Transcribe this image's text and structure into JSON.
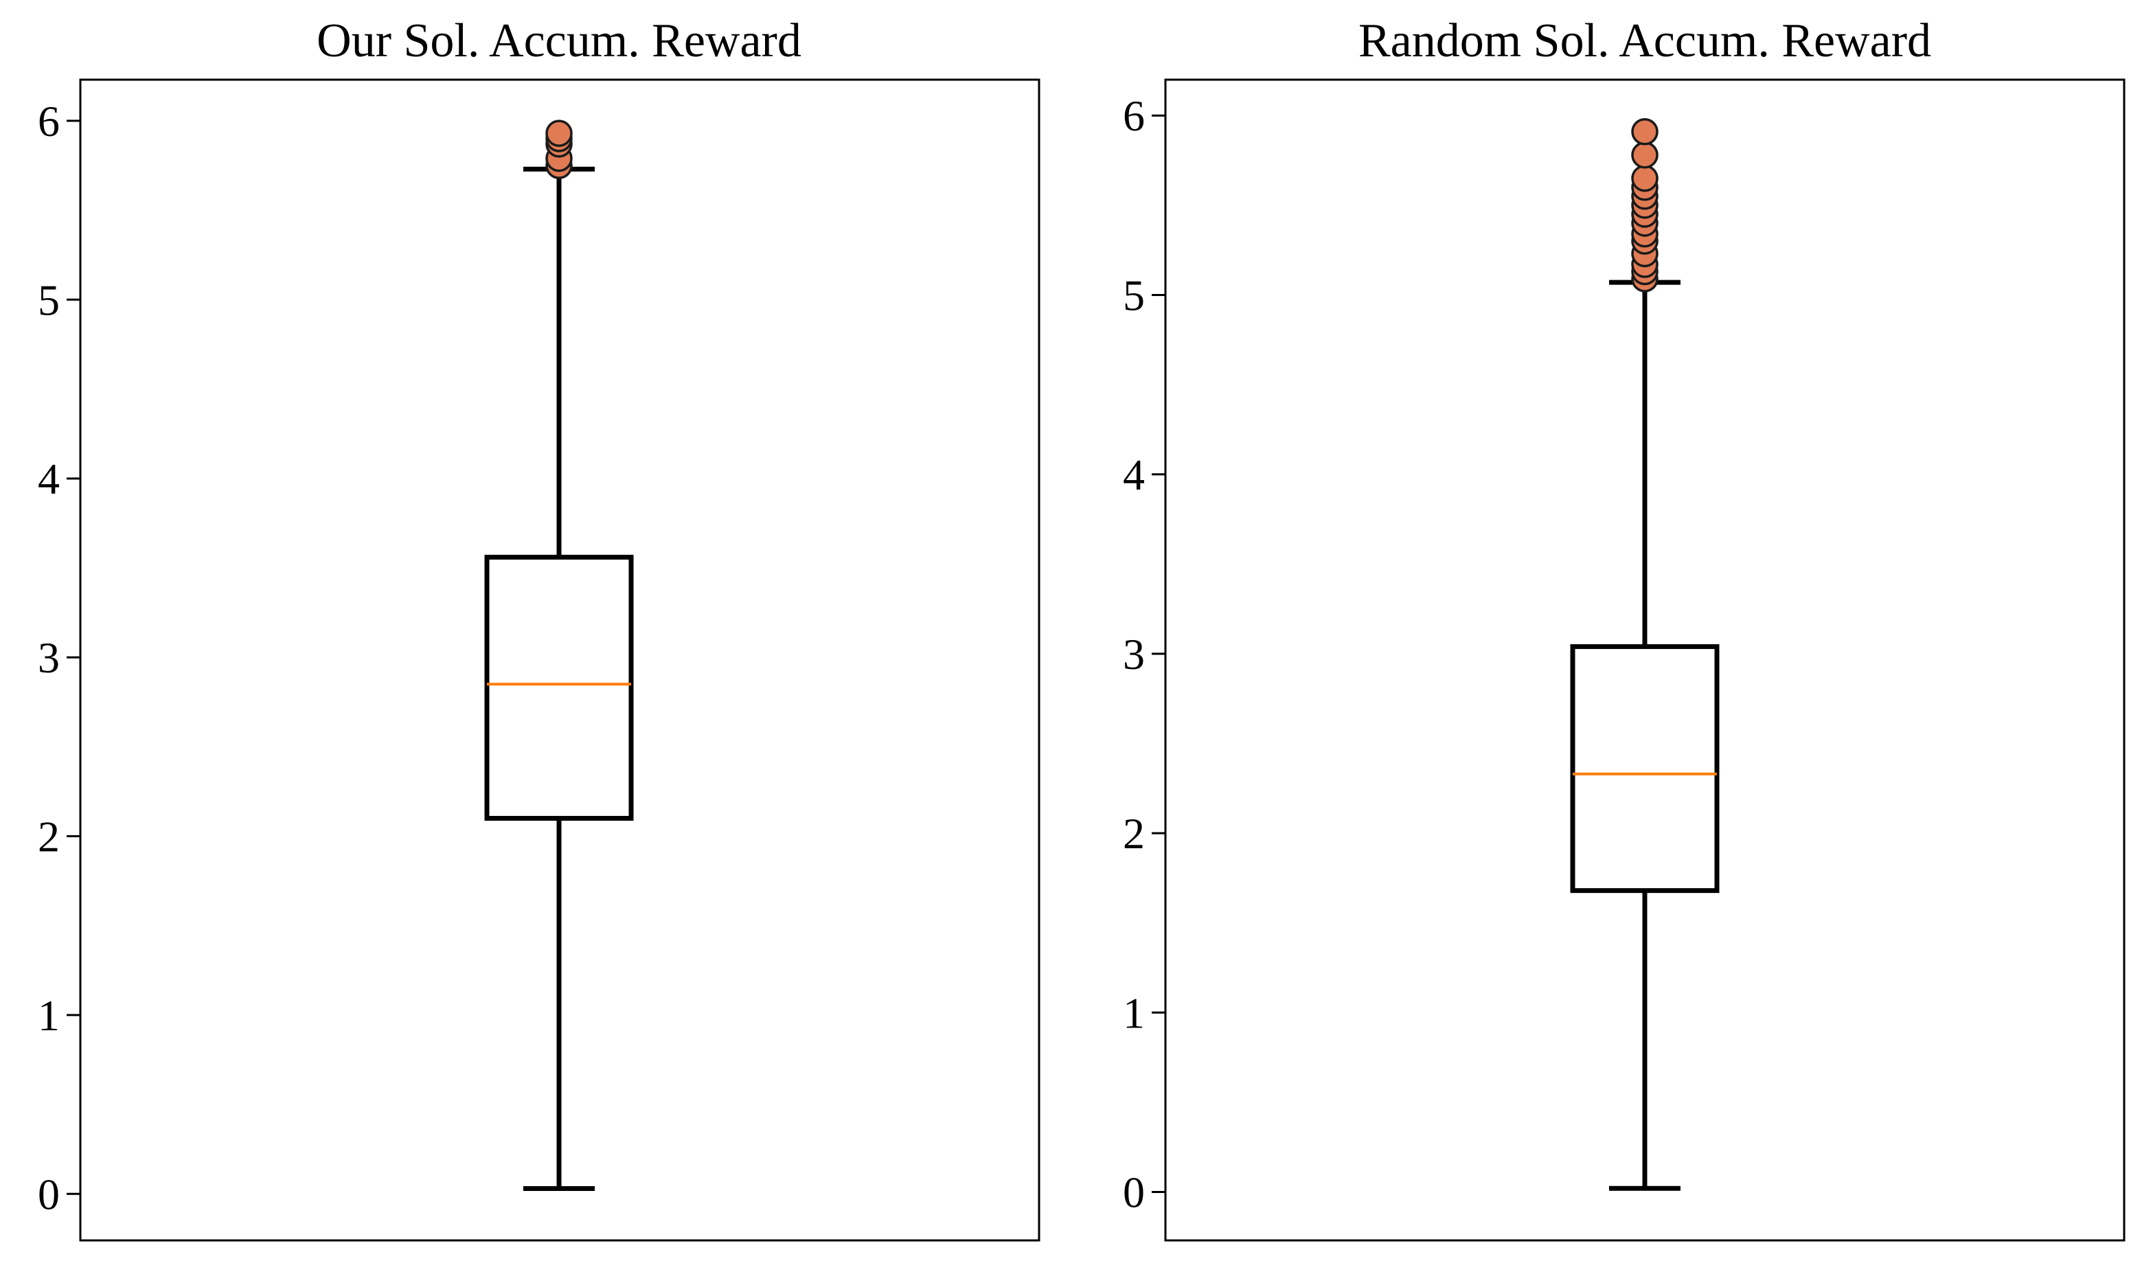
{
  "figure": {
    "colors": {
      "box": "#000000",
      "median": "#ff7f0e",
      "flier_fill": "#e07b54",
      "flier_edge": "#1a1a1a",
      "axes": "#000000",
      "background": "#ffffff"
    }
  },
  "chart_data": [
    {
      "type": "box",
      "title": "Our Sol. Accum. Reward",
      "xlabel": "",
      "ylabel": "",
      "ylim": [
        -0.26,
        6.23
      ],
      "yticks": [
        0,
        1,
        2,
        3,
        4,
        5,
        6
      ],
      "grid": false,
      "legend": "none",
      "box": {
        "whisker_low": 0.03,
        "q1": 2.1,
        "median": 2.85,
        "q3": 3.56,
        "whisker_high": 5.73
      },
      "fliers": [
        5.75,
        5.79,
        5.87,
        5.9,
        5.93
      ]
    },
    {
      "type": "box",
      "title": "Random Sol. Accum. Reward",
      "xlabel": "",
      "ylabel": "",
      "ylim": [
        -0.27,
        6.2
      ],
      "yticks": [
        0,
        1,
        2,
        3,
        4,
        5,
        6
      ],
      "grid": false,
      "legend": "none",
      "box": {
        "whisker_low": 0.02,
        "q1": 1.68,
        "median": 2.33,
        "q3": 3.04,
        "whisker_high": 5.07
      },
      "fliers": [
        5.09,
        5.13,
        5.17,
        5.23,
        5.3,
        5.34,
        5.4,
        5.45,
        5.5,
        5.55,
        5.6,
        5.65,
        5.78,
        5.91
      ]
    }
  ]
}
